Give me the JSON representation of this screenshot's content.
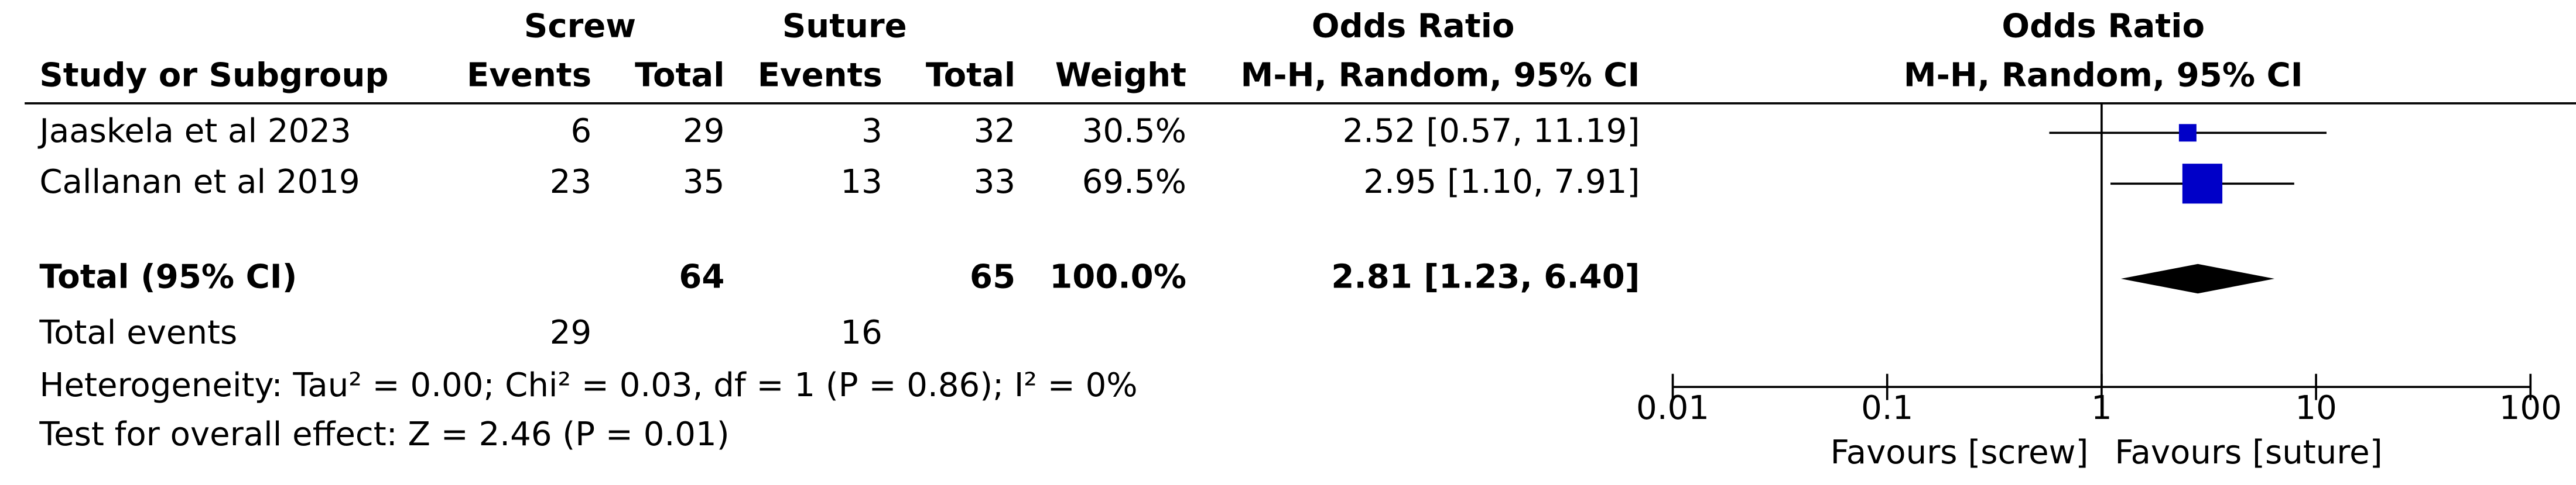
{
  "chart_data": {
    "type": "forest",
    "headers": {
      "screw": "Screw",
      "suture": "Suture",
      "table_effect": "Odds Ratio",
      "study": "Study or Subgroup",
      "screw_events": "Events",
      "screw_total": "Total",
      "suture_events": "Events",
      "suture_total": "Total",
      "weight": "Weight",
      "table_method": "M-H, Random, 95% CI"
    },
    "plot_title": "Odds Ratio",
    "plot_method": "M-H, Random, 95% CI",
    "studies": [
      {
        "name": "Jaaskela et al 2023",
        "screw_events": 6,
        "screw_total": 29,
        "suture_events": 3,
        "suture_total": 32,
        "weight": {
          "value": 30.5,
          "label": "30.5%"
        },
        "or": {
          "value": 2.52,
          "lower": 0.57,
          "upper": 11.19,
          "label": "2.52 [0.57, 11.19]"
        }
      },
      {
        "name": "Callanan et al 2019",
        "screw_events": 23,
        "screw_total": 35,
        "suture_events": 13,
        "suture_total": 33,
        "weight": {
          "value": 69.5,
          "label": "69.5%"
        },
        "or": {
          "value": 2.95,
          "lower": 1.1,
          "upper": 7.91,
          "label": "2.95 [1.10, 7.91]"
        }
      }
    ],
    "total": {
      "name": "Total (95% CI)",
      "screw_total": 64,
      "suture_total": 65,
      "weight": {
        "value": 100,
        "label": "100.0%"
      },
      "or": {
        "value": 2.81,
        "lower": 1.23,
        "upper": 6.4,
        "label": "2.81 [1.23, 6.40]"
      }
    },
    "total_events": {
      "label": "Total events",
      "screw": 29,
      "suture": 16
    },
    "heterogeneity": "Heterogeneity: Tau² = 0.00; Chi² = 0.03, df = 1 (P = 0.86); I² = 0%",
    "overall_effect": "Test for overall effect: Z = 2.46 (P = 0.01)",
    "xlim": [
      0.01,
      100
    ],
    "xticks": [
      0.01,
      0.1,
      1,
      10,
      100
    ],
    "log_scale": true,
    "favours_left": "Favours [screw]",
    "favours_right": "Favours [suture]",
    "box_color": "#0000c8",
    "diamond_color": "#000000"
  }
}
